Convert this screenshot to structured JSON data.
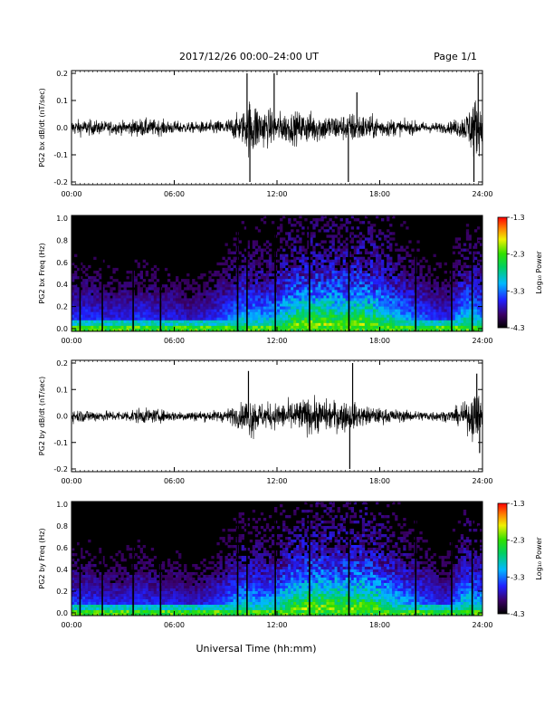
{
  "header": {
    "title": "2017/12/26  00:00–24:00 UT",
    "page": "Page 1/1"
  },
  "footer": {
    "xlabel": "Universal Time (hh:mm)"
  },
  "chart_data": [
    {
      "type": "line",
      "series": [
        {
          "name": ""
        }
      ],
      "ylabel": "PG2 bx dB/dt (nT/sec)",
      "ylim": [
        -0.2,
        0.2
      ],
      "yticks": [
        "0.2",
        "0.1",
        "0.0",
        "-0.1",
        "-0.2"
      ],
      "xlim": [
        "00:00",
        "24:00"
      ],
      "xticks": [
        "00:00",
        "06:00",
        "12:00",
        "18:00",
        "24:00"
      ],
      "envelope": {
        "hours": [
          0,
          1,
          2,
          3,
          4,
          5,
          6,
          7,
          8,
          9,
          10,
          10.5,
          11,
          12,
          13,
          14,
          15,
          16,
          16.5,
          17,
          18,
          19,
          20,
          21,
          22,
          23,
          23.5,
          24
        ],
        "amplitude_nT_per_s": [
          0.03,
          0.03,
          0.025,
          0.025,
          0.035,
          0.03,
          0.025,
          0.02,
          0.025,
          0.03,
          0.06,
          0.12,
          0.08,
          0.06,
          0.06,
          0.06,
          0.05,
          0.05,
          0.06,
          0.05,
          0.04,
          0.03,
          0.025,
          0.02,
          0.02,
          0.05,
          0.12,
          0.08
        ]
      },
      "spikes": [
        {
          "time": "10:15",
          "value": 0.2
        },
        {
          "time": "10:25",
          "value": -0.2
        },
        {
          "time": "11:50",
          "value": 0.2
        },
        {
          "time": "16:10",
          "value": -0.2
        },
        {
          "time": "16:40",
          "value": 0.13
        },
        {
          "time": "23:30",
          "value": -0.2
        },
        {
          "time": "23:45",
          "value": 0.2
        }
      ]
    },
    {
      "type": "heatmap",
      "ylabel": "PG2 bx Freq (Hz)",
      "ylim": [
        0,
        1.0
      ],
      "yticks": [
        "1.0",
        "0.8",
        "0.6",
        "0.4",
        "0.2",
        "0.0"
      ],
      "xlim": [
        "00:00",
        "24:00"
      ],
      "xticks": [
        "00:00",
        "06:00",
        "12:00",
        "18:00",
        "24:00"
      ],
      "colorbar": {
        "label": "Log₁₀ Power",
        "range": [
          -4.3,
          -1.3
        ],
        "ticks": [
          "-1.3",
          "-2.3",
          "-3.3",
          "-4.3"
        ]
      },
      "activity": {
        "hours": [
          0,
          1,
          2,
          3,
          4,
          5,
          6,
          7,
          8,
          9,
          10,
          11,
          12,
          13,
          14,
          15,
          16,
          17,
          18,
          19,
          20,
          21,
          22,
          23,
          24
        ],
        "level": [
          0.35,
          0.35,
          0.3,
          0.3,
          0.35,
          0.3,
          0.3,
          0.25,
          0.3,
          0.4,
          0.55,
          0.5,
          0.55,
          0.75,
          0.8,
          0.8,
          0.75,
          0.8,
          0.7,
          0.55,
          0.45,
          0.35,
          0.3,
          0.6,
          0.5
        ]
      },
      "vertical_lines_hours": [
        0.5,
        1.8,
        3.6,
        5.2,
        9.7,
        10.25,
        11.9,
        13.9,
        16.2,
        20.1,
        22.2,
        23.4
      ]
    },
    {
      "type": "line",
      "series": [
        {
          "name": ""
        }
      ],
      "ylabel": "PG2 by dB/dt (nT/sec)",
      "ylim": [
        -0.2,
        0.2
      ],
      "yticks": [
        "0.2",
        "0.1",
        "0.0",
        "-0.1",
        "-0.2"
      ],
      "xlim": [
        "00:00",
        "24:00"
      ],
      "xticks": [
        "00:00",
        "06:00",
        "12:00",
        "18:00",
        "24:00"
      ],
      "envelope": {
        "hours": [
          0,
          1,
          2,
          3,
          4,
          5,
          6,
          7,
          8,
          9,
          10,
          10.5,
          11,
          12,
          13,
          14,
          15,
          16,
          16.5,
          17,
          18,
          19,
          20,
          21,
          22,
          23,
          23.5,
          24
        ],
        "amplitude_nT_per_s": [
          0.025,
          0.025,
          0.02,
          0.02,
          0.03,
          0.025,
          0.02,
          0.02,
          0.02,
          0.025,
          0.05,
          0.09,
          0.05,
          0.05,
          0.06,
          0.07,
          0.06,
          0.06,
          0.05,
          0.04,
          0.03,
          0.025,
          0.02,
          0.02,
          0.02,
          0.05,
          0.1,
          0.06
        ]
      },
      "spikes": [
        {
          "time": "10:20",
          "value": 0.17
        },
        {
          "time": "16:15",
          "value": -0.2
        },
        {
          "time": "16:25",
          "value": 0.2
        },
        {
          "time": "23:40",
          "value": 0.16
        },
        {
          "time": "23:50",
          "value": -0.14
        }
      ]
    },
    {
      "type": "heatmap",
      "ylabel": "PG2 by Freq (Hz)",
      "ylim": [
        0,
        1.0
      ],
      "yticks": [
        "1.0",
        "0.8",
        "0.6",
        "0.4",
        "0.2",
        "0.0"
      ],
      "xlim": [
        "00:00",
        "24:00"
      ],
      "xticks": [
        "00:00",
        "06:00",
        "12:00",
        "18:00",
        "24:00"
      ],
      "colorbar": {
        "label": "Log₁₀ Power",
        "range": [
          -4.3,
          -1.3
        ],
        "ticks": [
          "-1.3",
          "-2.3",
          "-3.3",
          "-4.3"
        ]
      },
      "activity": {
        "hours": [
          0,
          1,
          2,
          3,
          4,
          5,
          6,
          7,
          8,
          9,
          10,
          11,
          12,
          13,
          14,
          15,
          16,
          17,
          18,
          19,
          20,
          21,
          22,
          23,
          24
        ],
        "level": [
          0.35,
          0.35,
          0.3,
          0.3,
          0.35,
          0.3,
          0.3,
          0.25,
          0.3,
          0.4,
          0.55,
          0.5,
          0.55,
          0.75,
          0.8,
          0.8,
          0.75,
          0.8,
          0.7,
          0.55,
          0.45,
          0.35,
          0.3,
          0.6,
          0.5
        ]
      },
      "vertical_lines_hours": [
        0.5,
        1.8,
        3.6,
        5.2,
        9.7,
        10.25,
        11.9,
        13.9,
        16.2,
        20.1,
        22.2,
        23.4
      ]
    }
  ]
}
